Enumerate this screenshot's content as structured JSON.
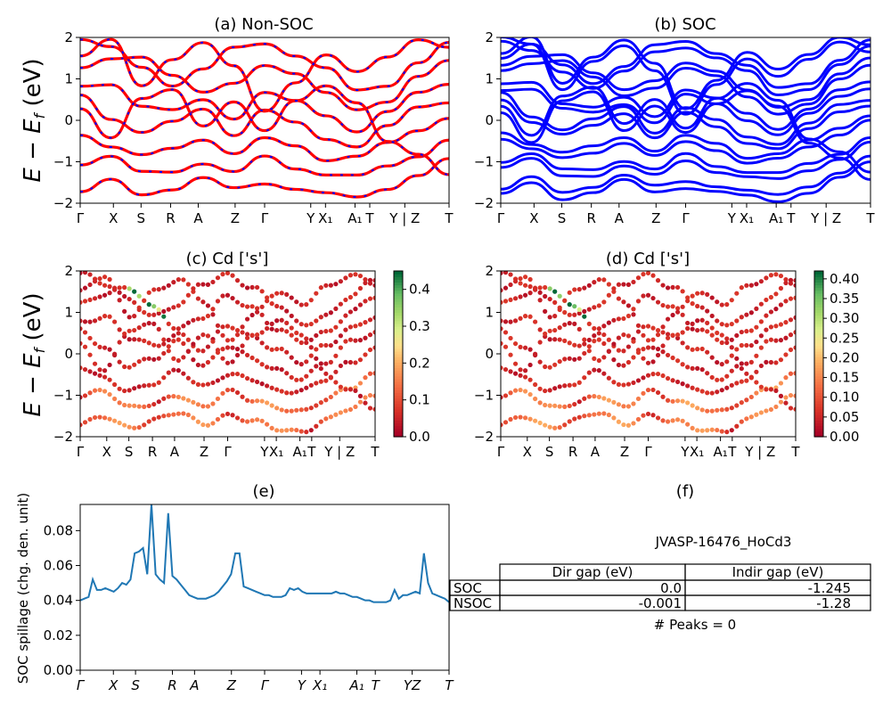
{
  "figure_caption_style": "matplotlib",
  "chart_data": [
    {
      "id": "a",
      "type": "line",
      "title": "(a) Non-SOC",
      "ylabel": "E − E_f (eV)",
      "ylim": [
        -2,
        2
      ],
      "yticks": [
        "2",
        "1",
        "0",
        "−1",
        "−2"
      ],
      "kpath_labels": [
        "Γ",
        "X",
        "S",
        "R",
        "A",
        "Z",
        "Γ",
        "Y",
        "X₁",
        "A₁",
        "T",
        "Y | Z",
        "T"
      ],
      "series": [
        {
          "color": "#ff0000",
          "style": "solid"
        },
        {
          "color": "#0000ff",
          "style": "dashed"
        }
      ],
      "bands": [
        [
          1.95,
          1.7,
          1.3,
          0.9,
          1.2,
          1.7,
          1.9,
          1.6,
          1.2,
          0.7,
          0.9,
          1.4,
          1.8
        ],
        [
          1.2,
          1.45,
          1.6,
          1.1,
          0.6,
          0.9,
          1.4,
          1.1,
          0.6,
          0.3,
          0.5,
          1.0,
          1.4
        ],
        [
          0.75,
          0.9,
          0.4,
          0.2,
          0.45,
          0.1,
          0.7,
          0.4,
          0.1,
          -0.2,
          0.2,
          0.6,
          0.9
        ],
        [
          0.6,
          0.1,
          -0.3,
          -0.1,
          0.3,
          -0.3,
          0.2,
          -0.1,
          -0.4,
          -0.6,
          -0.2,
          0.3,
          0.5
        ],
        [
          -0.3,
          -0.6,
          -0.9,
          -0.7,
          -0.4,
          -0.8,
          -0.5,
          -0.6,
          -0.9,
          -0.9,
          -0.6,
          -0.2,
          0.1
        ],
        [
          -1.0,
          -0.9,
          -1.3,
          -1.2,
          -1.0,
          -1.3,
          -0.9,
          -1.1,
          -1.3,
          -1.4,
          -1.1,
          -0.8,
          -0.5
        ],
        [
          -1.7,
          -1.5,
          -1.8,
          -1.6,
          -1.4,
          -1.7,
          -1.5,
          -1.6,
          -1.8,
          -1.9,
          -1.6,
          -1.3,
          -1.0
        ],
        [
          1.5,
          1.9,
          0.9,
          1.5,
          1.8,
          1.3,
          0.3,
          0.9,
          1.5,
          1.2,
          1.6,
          1.9,
          1.7
        ],
        [
          0.2,
          -0.4,
          0.6,
          0.7,
          -0.2,
          0.5,
          -0.2,
          0.4,
          0.8,
          0.5,
          -0.5,
          -0.9,
          -1.3
        ]
      ]
    },
    {
      "id": "b",
      "type": "line",
      "title": "(b) SOC",
      "ylim": [
        -2,
        2
      ],
      "yticks": [
        "2",
        "1",
        "0",
        "−1",
        "−2"
      ],
      "kpath_labels": [
        "Γ",
        "X",
        "S",
        "R",
        "A",
        "Z",
        "Γ",
        "Y",
        "X₁",
        "A₁",
        "T",
        "Y | Z",
        "T"
      ],
      "series": [
        {
          "color": "#0000ff",
          "style": "solid"
        }
      ]
    },
    {
      "id": "c",
      "type": "scatter",
      "title": "(c)  Cd ['s']",
      "ylabel": "E − E_f (eV)",
      "ylim": [
        -2,
        2
      ],
      "yticks": [
        "2",
        "1",
        "0",
        "−1",
        "−2"
      ],
      "kpath_labels": [
        "Γ",
        "X",
        "S",
        "R",
        "A",
        "Z",
        "Γ",
        "Y",
        "X₁",
        "A₁",
        "T",
        "Y | Z",
        "T"
      ],
      "colorbar": {
        "min": 0.0,
        "max": 0.45,
        "ticks": [
          "0.0",
          "0.1",
          "0.2",
          "0.3",
          "0.4"
        ],
        "colormap": "RdYlGn"
      }
    },
    {
      "id": "d",
      "type": "scatter",
      "title": "(d) Cd ['s']",
      "ylim": [
        -2,
        2
      ],
      "yticks": [
        "2",
        "1",
        "0",
        "−1",
        "−2"
      ],
      "kpath_labels": [
        "Γ",
        "X",
        "S",
        "R",
        "A",
        "Z",
        "Γ",
        "Y",
        "X₁",
        "A₁",
        "T",
        "Y | Z",
        "T"
      ],
      "colorbar": {
        "min": 0.0,
        "max": 0.42,
        "ticks": [
          "0.00",
          "0.05",
          "0.10",
          "0.15",
          "0.20",
          "0.25",
          "0.30",
          "0.35",
          "0.40"
        ],
        "colormap": "RdYlGn"
      }
    },
    {
      "id": "e",
      "type": "line",
      "title": "(e)",
      "ylabel": "SOC spillage (chg. den. unit)",
      "ylim": [
        0,
        0.095
      ],
      "yticks": [
        "0.00",
        "0.02",
        "0.04",
        "0.06",
        "0.08"
      ],
      "kpath_labels": [
        "Γ",
        "X",
        "S",
        "R",
        "A",
        "Z",
        "Γ",
        "Y",
        "X₁",
        "A₁",
        "T",
        "YZ",
        "T"
      ],
      "color": "#1f77b4",
      "values": [
        0.04,
        0.041,
        0.042,
        0.052,
        0.046,
        0.046,
        0.047,
        0.046,
        0.045,
        0.047,
        0.05,
        0.049,
        0.052,
        0.067,
        0.068,
        0.07,
        0.055,
        0.095,
        0.055,
        0.052,
        0.05,
        0.09,
        0.054,
        0.052,
        0.049,
        0.046,
        0.043,
        0.042,
        0.041,
        0.041,
        0.041,
        0.042,
        0.043,
        0.045,
        0.048,
        0.051,
        0.055,
        0.067,
        0.067,
        0.048,
        0.047,
        0.046,
        0.045,
        0.044,
        0.043,
        0.043,
        0.042,
        0.042,
        0.042,
        0.043,
        0.047,
        0.046,
        0.047,
        0.045,
        0.044,
        0.044,
        0.044,
        0.044,
        0.044,
        0.044,
        0.044,
        0.045,
        0.044,
        0.044,
        0.043,
        0.042,
        0.042,
        0.041,
        0.04,
        0.04,
        0.039,
        0.039,
        0.039,
        0.039,
        0.04,
        0.046,
        0.041,
        0.043,
        0.043,
        0.044,
        0.045,
        0.044,
        0.067,
        0.05,
        0.044,
        0.043,
        0.042,
        0.041,
        0.039
      ]
    }
  ],
  "panel_f": {
    "title": "(f)",
    "material": "JVASP-16476_HoCd3",
    "table": {
      "headers": [
        "Dir gap (eV)",
        "Indir gap (eV)"
      ],
      "rows": [
        {
          "label": "SOC",
          "dir": "0.0",
          "indir": "-1.245"
        },
        {
          "label": "NSOC",
          "dir": "-0.001",
          "indir": "-1.28"
        }
      ]
    },
    "peaks": "# Peaks = 0"
  }
}
